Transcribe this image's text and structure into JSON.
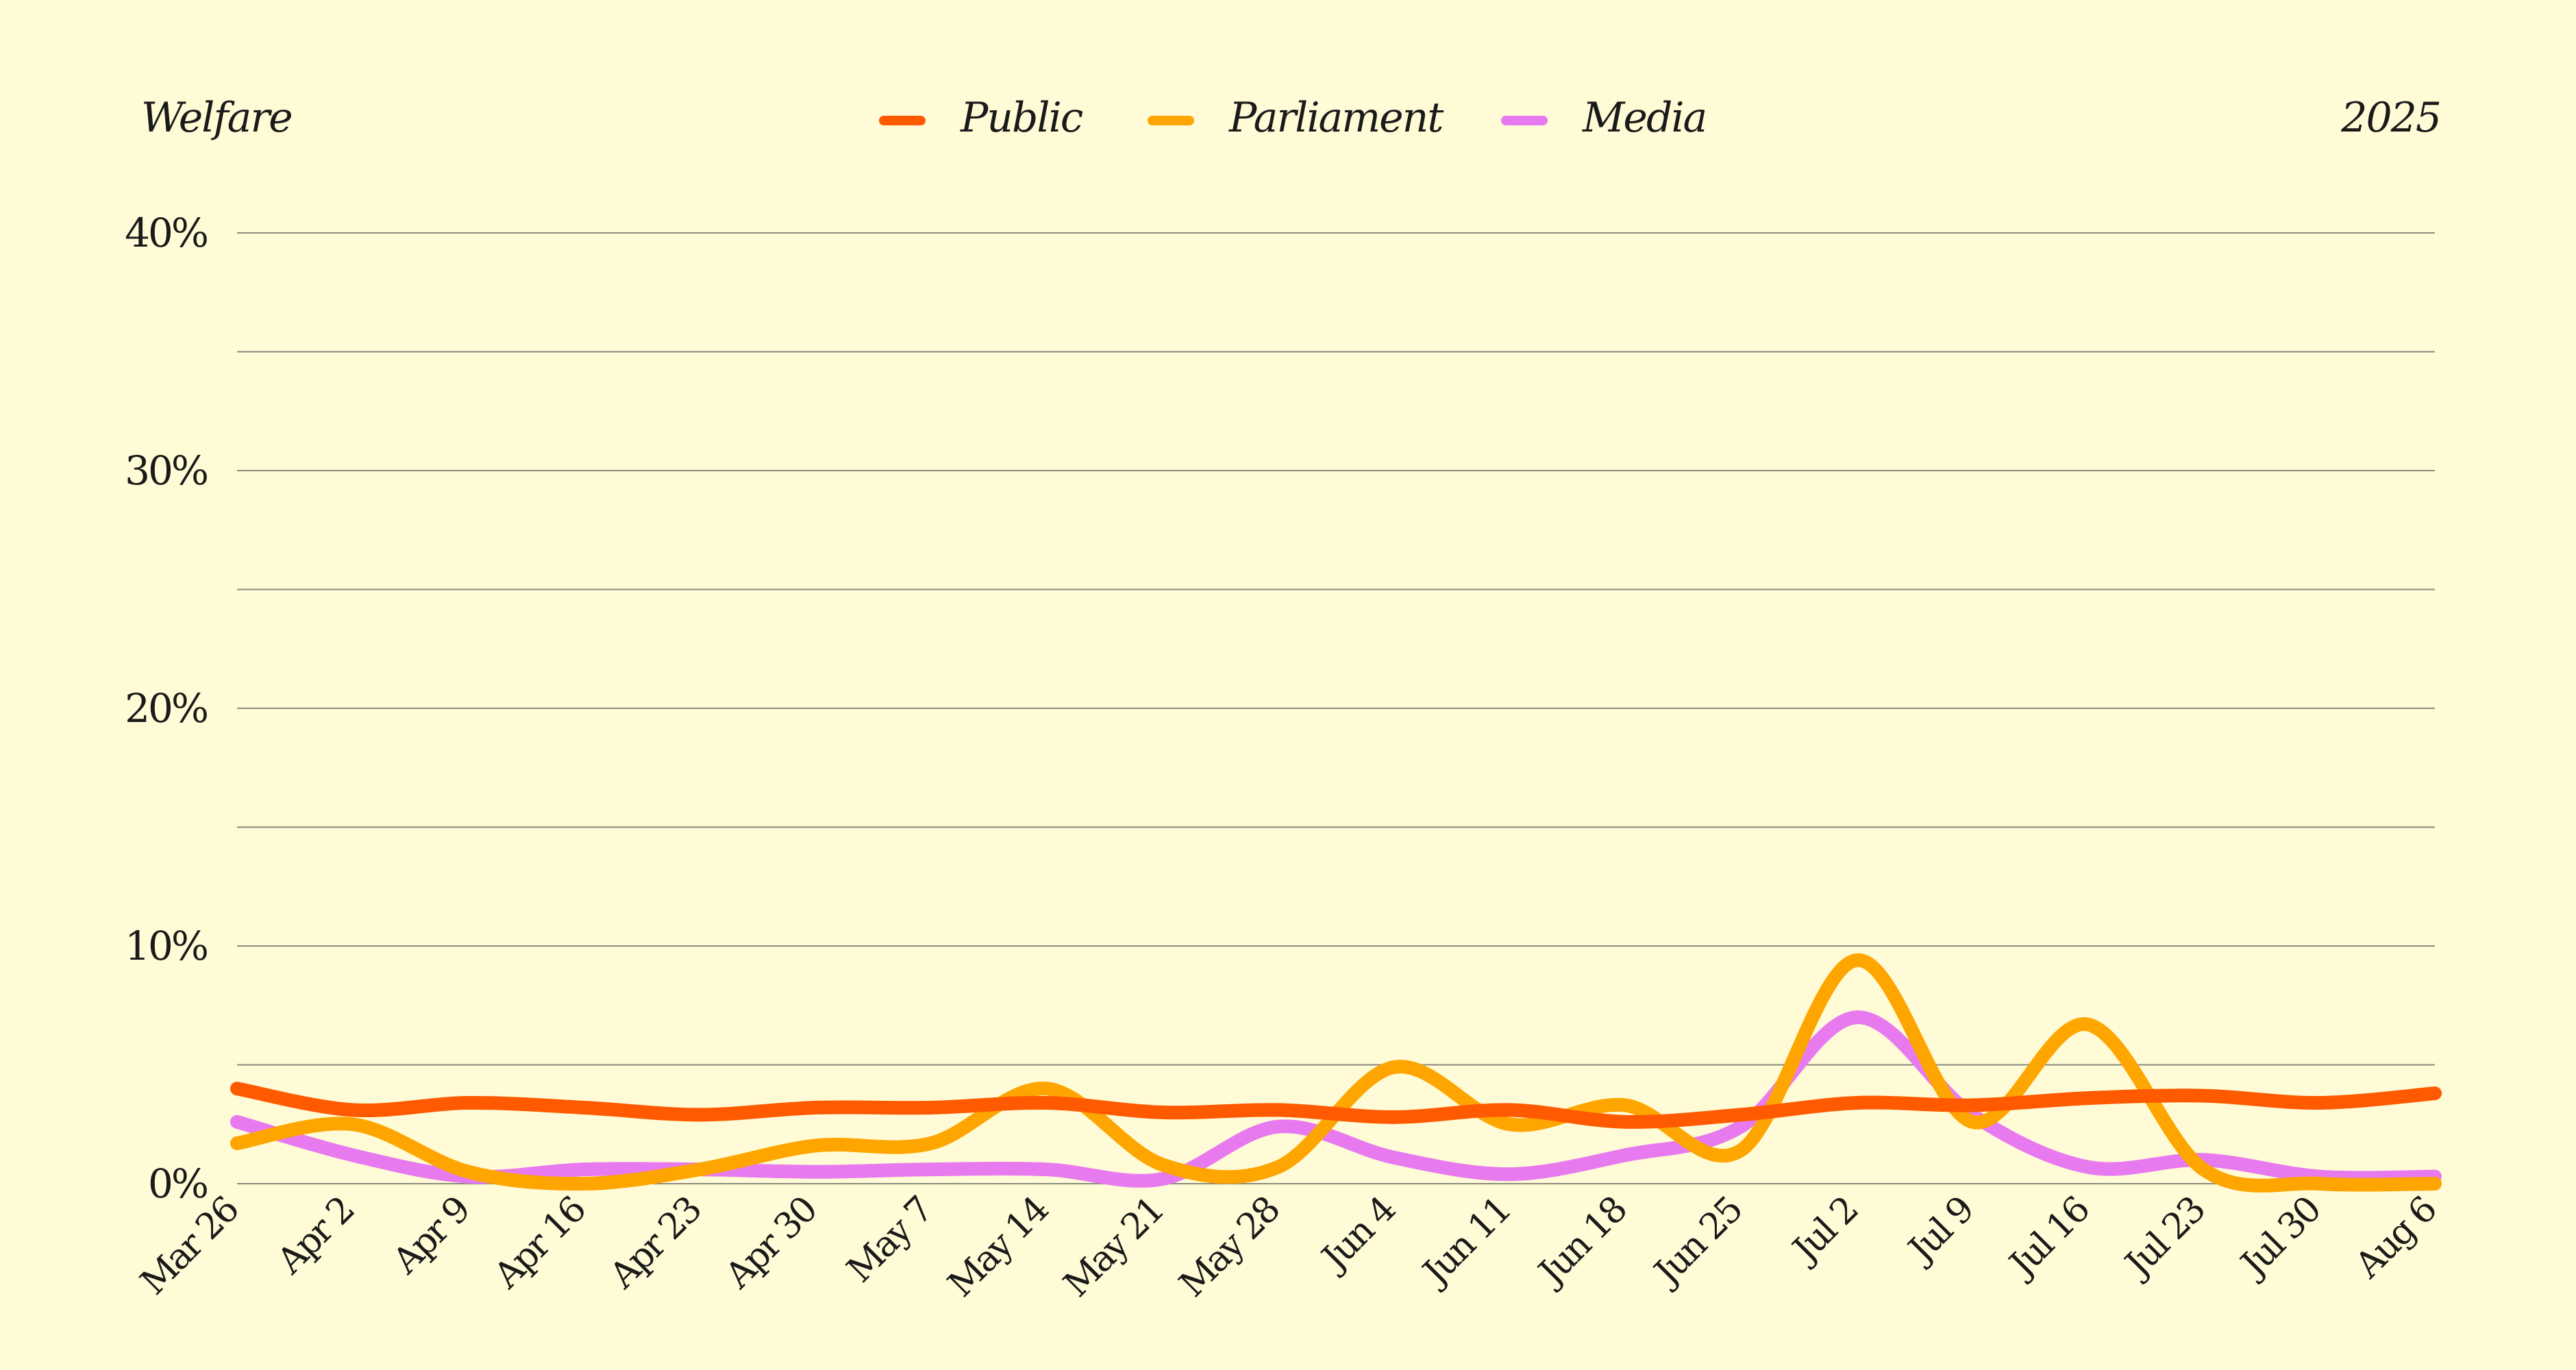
{
  "header": {
    "title": "Welfare",
    "year": "2025"
  },
  "chart_data": {
    "type": "line",
    "title": "Welfare",
    "subtitle": "2025",
    "xlabel": "",
    "ylabel": "",
    "ylim": [
      0,
      40
    ],
    "y_ticks": [
      0,
      10,
      20,
      30,
      40
    ],
    "y_tick_labels": [
      "0%",
      "10%",
      "20%",
      "30%",
      "40%"
    ],
    "y_minor_gridlines": [
      5,
      15,
      25,
      35
    ],
    "grid": true,
    "legend_position": "top-center",
    "categories": [
      "Mar 26",
      "Apr 2",
      "Apr 9",
      "Apr 16",
      "Apr 23",
      "Apr 30",
      "May 7",
      "May 14",
      "May 21",
      "May 28",
      "Jun 4",
      "Jun 11",
      "Jun 18",
      "Jun 25",
      "Jul 2",
      "Jul 9",
      "Jul 16",
      "Jul 23",
      "Jul 30",
      "Aug 6"
    ],
    "series": [
      {
        "name": "Public",
        "color": "#ff5a00",
        "values": [
          4.0,
          3.1,
          3.4,
          3.2,
          2.9,
          3.2,
          3.2,
          3.4,
          3.0,
          3.1,
          2.8,
          3.1,
          2.6,
          2.9,
          3.4,
          3.3,
          3.6,
          3.7,
          3.4,
          3.8
        ]
      },
      {
        "name": "Parliament",
        "color": "#ffa500",
        "values": [
          1.7,
          2.5,
          0.5,
          0.0,
          0.6,
          1.6,
          1.7,
          4.0,
          0.8,
          0.7,
          4.9,
          2.5,
          3.3,
          1.4,
          9.4,
          2.6,
          6.7,
          0.6,
          0.0,
          0.0
        ]
      },
      {
        "name": "Media",
        "color": "#e87af0",
        "values": [
          2.6,
          1.2,
          0.3,
          0.6,
          0.6,
          0.5,
          0.6,
          0.6,
          0.2,
          2.4,
          1.1,
          0.4,
          1.2,
          2.4,
          7.0,
          2.9,
          0.7,
          1.0,
          0.3,
          0.3
        ]
      }
    ]
  }
}
